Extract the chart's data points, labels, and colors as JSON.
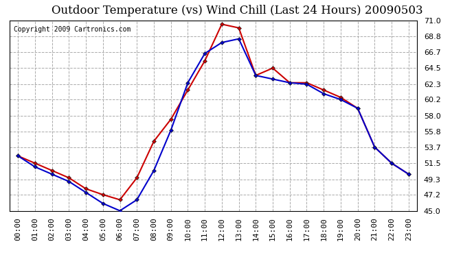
{
  "title": "Outdoor Temperature (vs) Wind Chill (Last 24 Hours) 20090503",
  "copyright": "Copyright 2009 Cartronics.com",
  "hours": [
    "00:00",
    "01:00",
    "02:00",
    "03:00",
    "04:00",
    "05:00",
    "06:00",
    "07:00",
    "08:00",
    "09:00",
    "10:00",
    "11:00",
    "12:00",
    "13:00",
    "14:00",
    "15:00",
    "16:00",
    "17:00",
    "18:00",
    "19:00",
    "20:00",
    "21:00",
    "22:00",
    "23:00"
  ],
  "outdoor_temp": [
    52.5,
    51.5,
    50.5,
    49.5,
    48.0,
    47.2,
    46.5,
    49.5,
    54.5,
    57.5,
    61.5,
    65.5,
    70.5,
    70.0,
    63.5,
    64.5,
    62.5,
    62.5,
    61.5,
    60.5,
    59.0,
    53.7,
    51.5,
    50.0
  ],
  "wind_chill": [
    52.5,
    51.0,
    50.0,
    49.0,
    47.5,
    46.0,
    45.0,
    46.5,
    50.5,
    56.0,
    62.5,
    66.5,
    68.0,
    68.5,
    63.5,
    63.0,
    62.5,
    62.3,
    61.0,
    60.2,
    59.0,
    53.7,
    51.5,
    50.0
  ],
  "temp_color": "#cc0000",
  "wind_chill_color": "#0000cc",
  "marker": "D",
  "marker_size": 3,
  "line_width": 1.5,
  "ylim": [
    45.0,
    71.0
  ],
  "yticks": [
    45.0,
    47.2,
    49.3,
    51.5,
    53.7,
    55.8,
    58.0,
    60.2,
    62.3,
    64.5,
    66.7,
    68.8,
    71.0
  ],
  "grid_color": "#aaaaaa",
  "grid_style": "--",
  "bg_color": "#ffffff",
  "plot_bg_color": "#ffffff",
  "title_fontsize": 12,
  "tick_fontsize": 8,
  "copyright_fontsize": 7
}
